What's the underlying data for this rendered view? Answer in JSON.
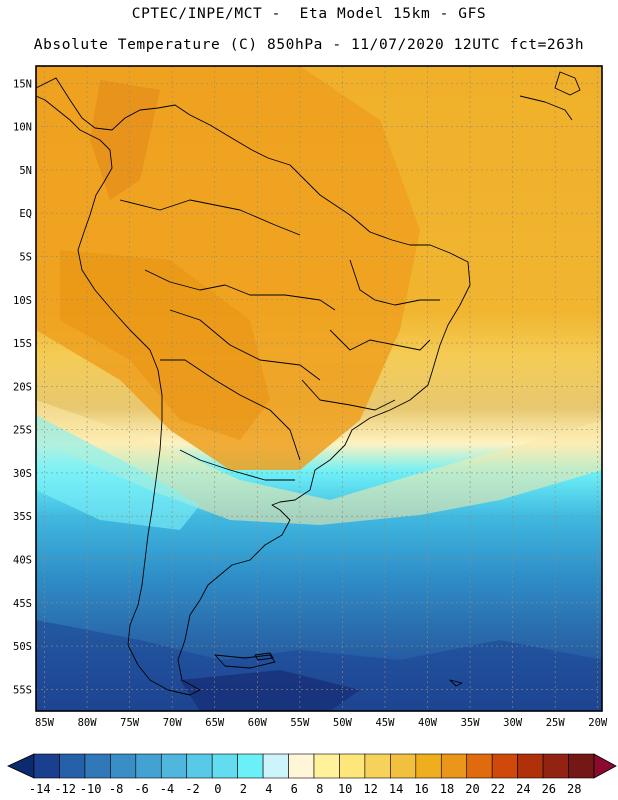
{
  "title": {
    "line1": "CPTEC/INPE/MCT -  Eta Model 15km - GFS",
    "line2": "Absolute Temperature (C) 850hPa - 11/07/2020 12UTC fct=263h"
  },
  "map": {
    "lat_labels": [
      "15N",
      "10N",
      "5N",
      "EQ",
      "5S",
      "10S",
      "15S",
      "20S",
      "25S",
      "30S",
      "35S",
      "40S",
      "45S",
      "50S",
      "55S"
    ],
    "lat_values": [
      15,
      10,
      5,
      0,
      -5,
      -10,
      -15,
      -20,
      -25,
      -30,
      -35,
      -40,
      -45,
      -50,
      -55
    ],
    "lon_labels": [
      "85W",
      "80W",
      "75W",
      "70W",
      "65W",
      "60W",
      "55W",
      "50W",
      "45W",
      "40W",
      "35W",
      "30W",
      "25W",
      "20W"
    ],
    "lon_values": [
      -85,
      -80,
      -75,
      -70,
      -65,
      -60,
      -55,
      -50,
      -45,
      -40,
      -35,
      -30,
      -25,
      -20
    ],
    "lat_range": [
      -57.5,
      17
    ],
    "lon_range": [
      -86,
      -19.5
    ],
    "gridlines": "dotted"
  },
  "colorbar": {
    "labels": [
      "-14",
      "-12",
      "-10",
      "-8",
      "-6",
      "-4",
      "-2",
      "0",
      "2",
      "4",
      "6",
      "8",
      "10",
      "12",
      "14",
      "16",
      "18",
      "20",
      "22",
      "24",
      "26",
      "28"
    ],
    "colors": [
      "#1a3f8f",
      "#2660a8",
      "#3178b8",
      "#3a8ec6",
      "#43a2d2",
      "#4fb6de",
      "#58c9e6",
      "#63dcef",
      "#6cf0f7",
      "#cdf3fb",
      "#fff6d8",
      "#fff29a",
      "#fde67a",
      "#f6d25a",
      "#f0c03e",
      "#efae1e",
      "#e9961a",
      "#e06a0e",
      "#cf4a0a",
      "#b0300a",
      "#922312",
      "#741816"
    ],
    "under_color": "#0c2a6e",
    "over_color": "#8b0a2e"
  }
}
